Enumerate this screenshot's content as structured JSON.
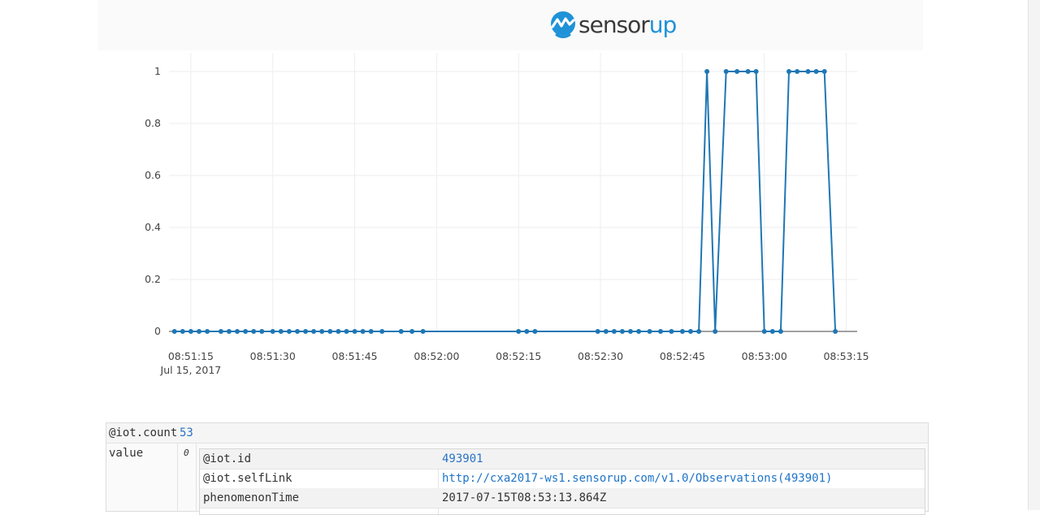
{
  "brand": {
    "name_dark": "sensor",
    "name_blue": "up",
    "mark_icon": "sensorup-logo-icon"
  },
  "colors": {
    "line": "#1f77b4",
    "link": "#1f74c7",
    "brand_blue": "#1f92d8"
  },
  "chart_data": {
    "type": "line",
    "title": "",
    "xlabel": "",
    "ylabel": "",
    "y_ticks": [
      "0",
      "0.2",
      "0.4",
      "0.6",
      "0.8",
      "1"
    ],
    "ylim": [
      0,
      1
    ],
    "x_ticks": [
      "08:51:15",
      "08:51:30",
      "08:51:45",
      "08:52:00",
      "08:52:15",
      "08:52:30",
      "08:52:45",
      "08:53:00",
      "08:53:15"
    ],
    "x_tick_sublabel": "Jul 15, 2017",
    "xlim": [
      "08:51:11",
      "08:53:17"
    ],
    "grid": true,
    "series": [
      {
        "x": [
          "08:51:12",
          "08:51:13.5",
          "08:51:15",
          "08:51:16.5",
          "08:51:18",
          "08:51:20.5",
          "08:51:22",
          "08:51:23.5",
          "08:51:25",
          "08:51:26.5",
          "08:51:28",
          "08:51:30",
          "08:51:31.5",
          "08:51:33",
          "08:51:34.5",
          "08:51:36",
          "08:51:37.5",
          "08:51:39",
          "08:51:40.5",
          "08:51:42",
          "08:51:43.5",
          "08:51:45",
          "08:51:46.5",
          "08:51:48",
          "08:51:50",
          "08:51:53.5",
          "08:51:55.5",
          "08:51:57.5",
          "08:52:15",
          "08:52:16.5",
          "08:52:18",
          "08:52:29.5",
          "08:52:31",
          "08:52:32.5",
          "08:52:34",
          "08:52:35.5",
          "08:52:37",
          "08:52:39",
          "08:52:41",
          "08:52:43",
          "08:52:45",
          "08:52:46.5",
          "08:52:48",
          "08:52:49.5",
          "08:52:51",
          "08:52:53",
          "08:52:55",
          "08:52:57",
          "08:52:58.5",
          "08:53:00",
          "08:53:01.5",
          "08:53:03",
          "08:53:04.5",
          "08:53:06",
          "08:53:08",
          "08:53:09.5",
          "08:53:11",
          "08:53:13"
        ],
        "y": [
          0,
          0,
          0,
          0,
          0,
          0,
          0,
          0,
          0,
          0,
          0,
          0,
          0,
          0,
          0,
          0,
          0,
          0,
          0,
          0,
          0,
          0,
          0,
          0,
          0,
          0,
          0,
          0,
          0,
          0,
          0,
          0,
          0,
          0,
          0,
          0,
          0,
          0,
          0,
          0,
          0,
          0,
          0,
          1,
          0,
          1,
          1,
          1,
          1,
          0,
          0,
          0,
          1,
          1,
          1,
          1,
          1,
          0
        ]
      }
    ]
  },
  "json_view": {
    "count_key": "@iot.count",
    "count_value": "53",
    "value_key": "value",
    "index": "0",
    "rows": [
      {
        "key": "@iot.id",
        "value": "493901"
      },
      {
        "key": "@iot.selfLink",
        "value": "http://cxa2017-ws1.sensorup.com/v1.0/Observations(493901)"
      },
      {
        "key": "phenomenonTime",
        "value": "2017-07-15T08:53:13.864Z"
      }
    ]
  }
}
